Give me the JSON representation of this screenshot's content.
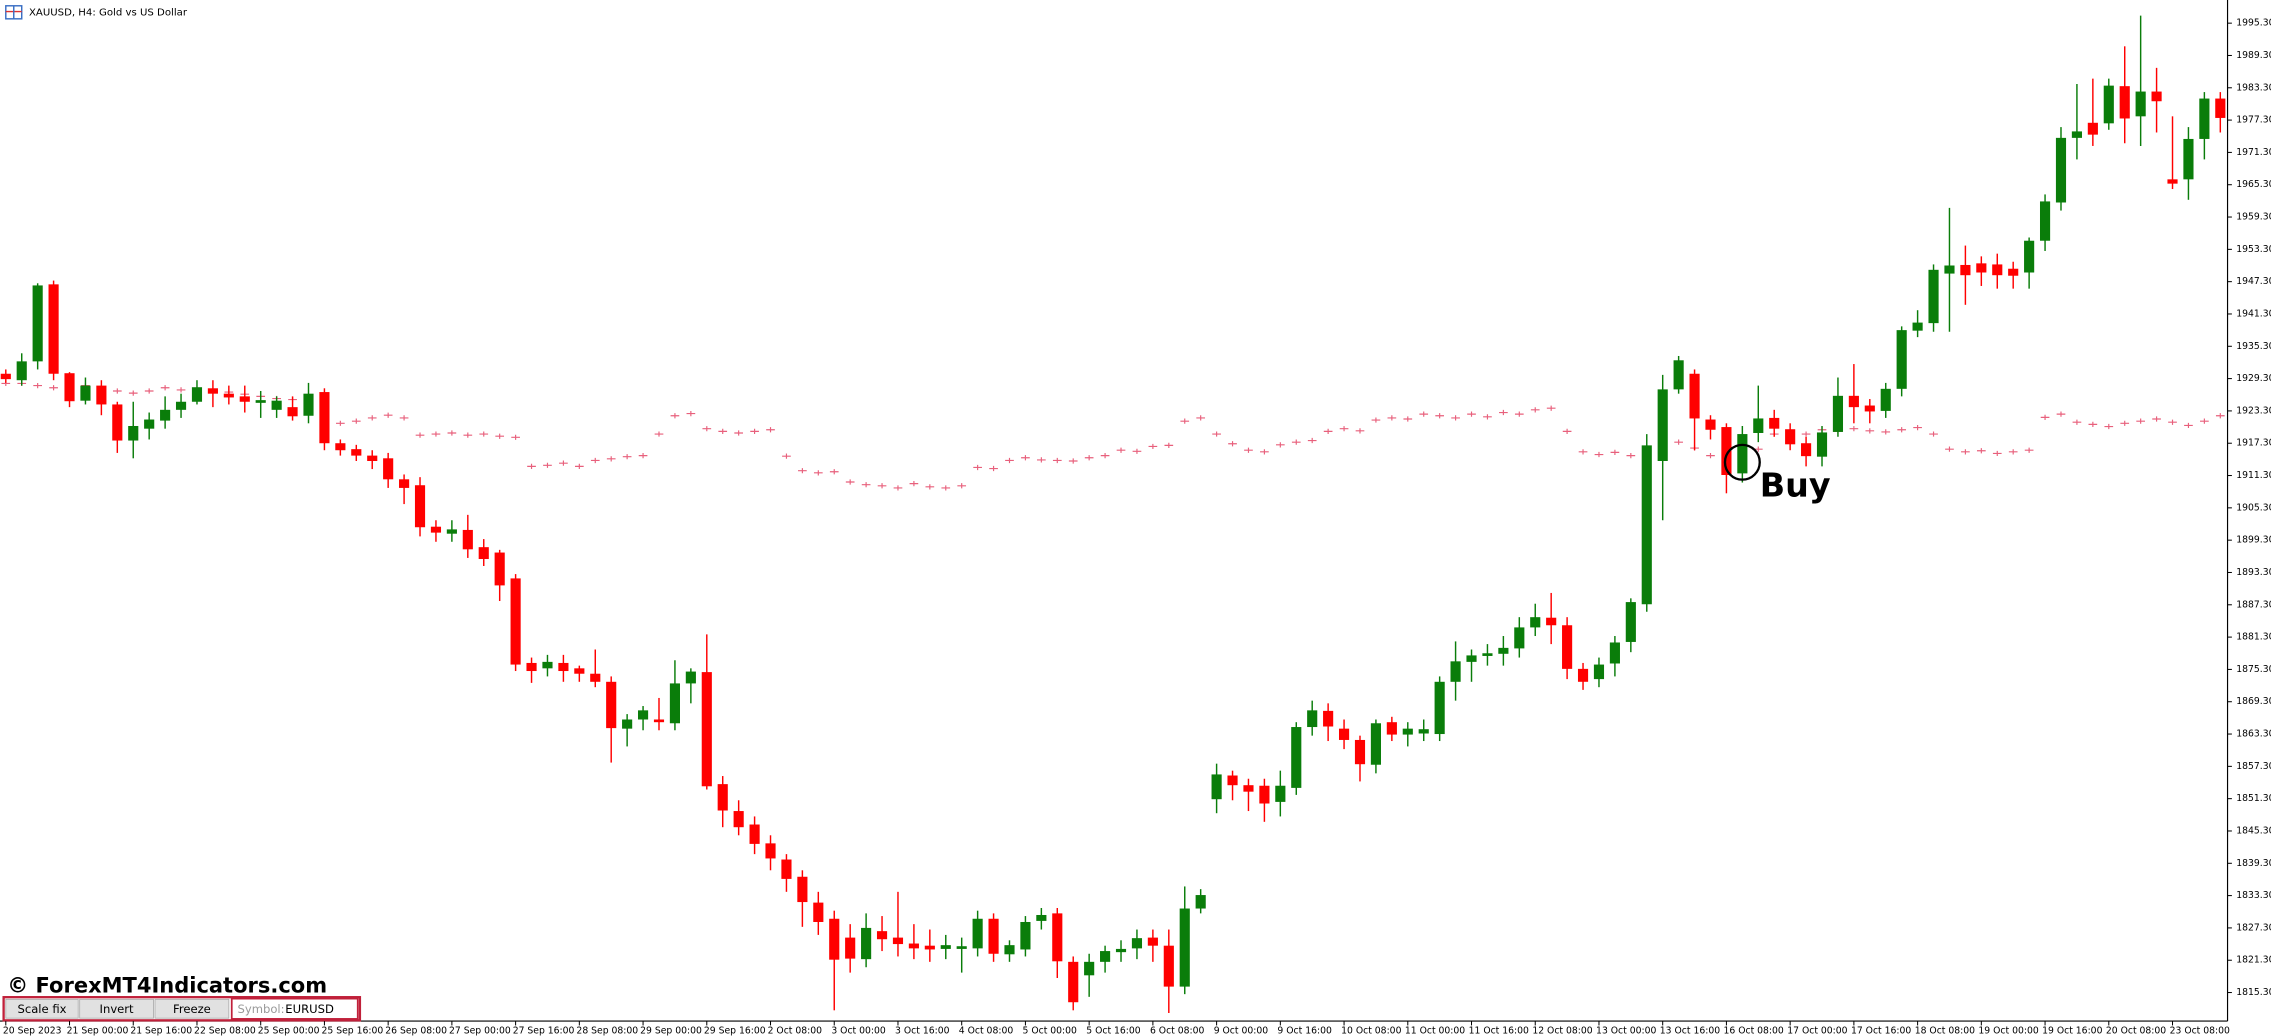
{
  "title": "XAUUSD, H4:  Gold vs US Dollar",
  "watermark": "© ForexMT4Indicators.com",
  "toolbar": {
    "buttons": [
      "Scale fix",
      "Invert",
      "Freeze"
    ],
    "symbol_label": "Symbol:",
    "symbol": "EURUSD"
  },
  "chart_data": {
    "type": "candlestick",
    "categories": [
      "20 Sep 2023",
      null,
      null,
      null,
      "21 Sep 00:00",
      null,
      null,
      null,
      "21 Sep 16:00",
      null,
      null,
      null,
      "22 Sep 08:00",
      null,
      null,
      null,
      "25 Sep 00:00",
      null,
      null,
      null,
      "25 Sep 16:00",
      null,
      null,
      null,
      "26 Sep 08:00",
      null,
      null,
      null,
      "27 Sep 00:00",
      null,
      null,
      null,
      "27 Sep 16:00",
      null,
      null,
      null,
      "28 Sep 08:00",
      null,
      null,
      null,
      "29 Sep 00:00",
      null,
      null,
      null,
      "29 Sep 16:00",
      null,
      null,
      null,
      "2 Oct 08:00",
      null,
      null,
      null,
      "3 Oct 00:00",
      null,
      null,
      null,
      "3 Oct 16:00",
      null,
      null,
      null,
      "4 Oct 08:00",
      null,
      null,
      null,
      "5 Oct 00:00",
      null,
      null,
      null,
      "5 Oct 16:00",
      null,
      null,
      null,
      "6 Oct 08:00",
      null,
      null,
      null,
      "9 Oct 00:00",
      null,
      null,
      null,
      "9 Oct 16:00",
      null,
      null,
      null,
      "10 Oct 08:00",
      null,
      null,
      null,
      "11 Oct 00:00",
      null,
      null,
      null,
      "11 Oct 16:00",
      null,
      null,
      null,
      "12 Oct 08:00",
      null,
      null,
      null,
      "13 Oct 00:00",
      null,
      null,
      null,
      "13 Oct 16:00",
      null,
      null,
      null,
      "16 Oct 08:00",
      null,
      null,
      null,
      "17 Oct 00:00",
      null,
      null,
      null,
      "17 Oct 16:00",
      null,
      null,
      null,
      "18 Oct 08:00",
      null,
      null,
      null,
      "19 Oct 00:00",
      null,
      null,
      null,
      "19 Oct 16:00",
      null,
      null,
      null,
      "20 Oct 08:00",
      null,
      null,
      null,
      "23 Oct 08:00",
      null,
      null,
      null
    ],
    "open": [
      1930.2,
      1929.0,
      1932.5,
      1946.8,
      1930.3,
      1925.2,
      1928.0,
      1924.5,
      1917.8,
      1920.0,
      1921.5,
      1923.5,
      1925.0,
      1927.5,
      1926.5,
      1926.0,
      1924.8,
      1923.5,
      1924.0,
      1922.4,
      1926.8,
      1917.3,
      1916.2,
      1915.0,
      1914.5,
      1910.6,
      1909.5,
      1901.8,
      1900.5,
      1901.2,
      1898.0,
      1897.0,
      1892.2,
      1876.5,
      1875.5,
      1876.5,
      1875.5,
      1874.5,
      1873.0,
      1864.3,
      1866.0,
      1866.0,
      1865.3,
      1872.7,
      1874.8,
      1854.0,
      1849.0,
      1846.5,
      1843.0,
      1840.0,
      1836.8,
      1832.0,
      1829.0,
      1825.5,
      1821.5,
      1826.7,
      1825.5,
      1824.4,
      1824.0,
      1823.4,
      1823.4,
      1823.5,
      1829.0,
      1822.4,
      1823.3,
      1828.6,
      1830.0,
      1821.0,
      1818.5,
      1821.0,
      1822.8,
      1823.5,
      1825.5,
      1824.0,
      1816.4,
      1830.9,
      1851.2,
      1855.6,
      1853.8,
      1853.7,
      1850.7,
      1853.3,
      1864.6,
      1867.6,
      1864.3,
      1862.2,
      1857.6,
      1865.5,
      1863.2,
      1863.4,
      1863.3,
      1873.0,
      1876.7,
      1877.8,
      1878.2,
      1879.2,
      1883.1,
      1884.9,
      1883.5,
      1875.4,
      1873.5,
      1876.4,
      1880.4,
      1887.4,
      1914.0,
      1927.3,
      1930.2,
      1921.7,
      1920.3,
      1911.7,
      1919.2,
      1922.0,
      1919.9,
      1917.3,
      1914.8,
      1919.4,
      1926.1,
      1924.3,
      1923.3,
      1927.4,
      1938.2,
      1939.6,
      1948.8,
      1950.4,
      1950.7,
      1950.5,
      1949.7,
      1949.0,
      1954.9,
      1962.0,
      1974.0,
      1976.8,
      1976.7,
      1983.6,
      1978.0,
      1982.6,
      1966.3,
      1966.3,
      1973.8,
      1981.3
    ],
    "high": [
      1931.0,
      1934.0,
      1947.0,
      1947.5,
      1930.5,
      1929.5,
      1929.0,
      1925.0,
      1925.0,
      1923.0,
      1926.0,
      1926.5,
      1929.0,
      1929.0,
      1928.0,
      1928.0,
      1927.0,
      1926.0,
      1926.0,
      1928.5,
      1927.5,
      1918.0,
      1917.0,
      1916.0,
      1915.5,
      1911.5,
      1911.0,
      1903.0,
      1903.0,
      1904.0,
      1899.5,
      1897.5,
      1893.0,
      1877.5,
      1878.0,
      1878.0,
      1876.0,
      1879.0,
      1874.0,
      1867.0,
      1868.5,
      1870.0,
      1877.0,
      1875.5,
      1881.8,
      1855.5,
      1851.0,
      1848.0,
      1844.5,
      1841.0,
      1838.0,
      1834.0,
      1830.5,
      1828.0,
      1830.0,
      1829.5,
      1834.0,
      1828.0,
      1827.0,
      1826.0,
      1825.5,
      1830.5,
      1830.0,
      1825.0,
      1829.5,
      1831.0,
      1831.0,
      1822.0,
      1822.5,
      1824.0,
      1825.0,
      1827.0,
      1827.0,
      1827.0,
      1835.0,
      1834.5,
      1857.8,
      1856.5,
      1855.0,
      1855.0,
      1856.5,
      1865.5,
      1869.5,
      1869.0,
      1866.0,
      1863.0,
      1866.0,
      1866.5,
      1865.5,
      1866.0,
      1874.0,
      1880.5,
      1879.0,
      1880.0,
      1881.5,
      1885.0,
      1887.5,
      1889.5,
      1885.0,
      1876.5,
      1877.5,
      1881.5,
      1888.5,
      1919.0,
      1930.0,
      1933.5,
      1931.0,
      1922.5,
      1921.0,
      1920.5,
      1928.0,
      1923.5,
      1921.0,
      1918.5,
      1920.5,
      1929.5,
      1932.0,
      1925.5,
      1928.5,
      1939.0,
      1942.0,
      1950.5,
      1961.0,
      1954.0,
      1952.0,
      1952.5,
      1951.0,
      1955.5,
      1963.5,
      1976.0,
      1984.0,
      1985.0,
      1985.0,
      1991.0,
      1996.7,
      1987.0,
      1978.0,
      1976.0,
      1982.5,
      1982.5
    ],
    "low": [
      1928.5,
      1928.0,
      1931.0,
      1929.0,
      1924.0,
      1924.5,
      1922.5,
      1915.5,
      1914.5,
      1918.0,
      1920.0,
      1922.0,
      1924.5,
      1924.0,
      1924.5,
      1923.0,
      1922.0,
      1922.0,
      1921.5,
      1921.0,
      1916.0,
      1915.0,
      1914.0,
      1912.5,
      1909.0,
      1906.0,
      1900.0,
      1899.0,
      1899.0,
      1896.0,
      1894.5,
      1888.0,
      1875.0,
      1872.8,
      1874.0,
      1873.0,
      1873.0,
      1872.0,
      1858.0,
      1861.0,
      1864.0,
      1864.0,
      1864.0,
      1869.0,
      1853.0,
      1846.0,
      1844.5,
      1841.0,
      1838.0,
      1834.0,
      1827.5,
      1826.0,
      1812.0,
      1819.0,
      1820.0,
      1823.0,
      1822.0,
      1821.5,
      1821.0,
      1821.5,
      1819.0,
      1822.0,
      1821.0,
      1821.0,
      1822.0,
      1827.0,
      1818.0,
      1812.0,
      1814.5,
      1819.0,
      1821.0,
      1821.5,
      1821.0,
      1811.5,
      1815.0,
      1830.0,
      1848.6,
      1851.0,
      1849.0,
      1847.0,
      1848.0,
      1852.0,
      1863.0,
      1862.0,
      1860.5,
      1854.5,
      1856.0,
      1862.0,
      1861.0,
      1862.0,
      1862.0,
      1869.5,
      1873.0,
      1876.0,
      1876.0,
      1877.5,
      1881.5,
      1880.0,
      1873.5,
      1871.5,
      1872.0,
      1874.0,
      1878.5,
      1886.0,
      1903.0,
      1926.5,
      1916.0,
      1918.0,
      1908.0,
      1910.0,
      1917.5,
      1918.5,
      1916.0,
      1913.0,
      1913.0,
      1918.5,
      1921.0,
      1921.0,
      1922.0,
      1926.0,
      1937.0,
      1938.0,
      1938.0,
      1943.0,
      1946.5,
      1946.0,
      1946.0,
      1946.0,
      1953.0,
      1960.5,
      1970.0,
      1972.5,
      1975.5,
      1973.0,
      1972.5,
      1975.0,
      1964.5,
      1962.5,
      1970.0,
      1975.0
    ],
    "close": [
      1929.2,
      1932.5,
      1946.6,
      1930.2,
      1925.1,
      1928.0,
      1924.5,
      1917.8,
      1920.5,
      1921.7,
      1923.5,
      1925.0,
      1927.7,
      1926.5,
      1925.8,
      1925.0,
      1925.3,
      1925.2,
      1922.3,
      1926.5,
      1917.3,
      1916.0,
      1915.0,
      1914.0,
      1910.6,
      1909.0,
      1901.7,
      1900.7,
      1901.3,
      1897.6,
      1895.8,
      1890.9,
      1876.2,
      1875.0,
      1876.7,
      1875.0,
      1874.5,
      1873.0,
      1864.4,
      1866.0,
      1867.7,
      1865.5,
      1872.7,
      1874.9,
      1853.6,
      1849.1,
      1846.0,
      1842.9,
      1840.2,
      1836.4,
      1832.1,
      1828.4,
      1821.4,
      1821.6,
      1827.3,
      1825.2,
      1824.3,
      1823.5,
      1823.3,
      1824.1,
      1823.9,
      1829.0,
      1822.5,
      1824.1,
      1828.4,
      1829.7,
      1821.1,
      1813.5,
      1821.0,
      1823.0,
      1823.4,
      1825.4,
      1824.0,
      1816.4,
      1830.9,
      1833.4,
      1855.8,
      1853.8,
      1852.6,
      1850.4,
      1853.7,
      1864.6,
      1867.7,
      1864.7,
      1862.2,
      1857.7,
      1865.3,
      1863.2,
      1864.3,
      1864.2,
      1873.0,
      1876.8,
      1877.9,
      1878.3,
      1879.3,
      1883.1,
      1885.0,
      1883.5,
      1875.4,
      1873.0,
      1876.2,
      1880.3,
      1887.8,
      1916.9,
      1927.3,
      1932.7,
      1921.9,
      1919.8,
      1911.4,
      1919.0,
      1921.9,
      1920.0,
      1917.1,
      1914.9,
      1919.3,
      1926.1,
      1924.0,
      1923.2,
      1927.4,
      1938.3,
      1939.7,
      1949.5,
      1950.3,
      1948.5,
      1949.0,
      1948.5,
      1948.4,
      1954.9,
      1962.2,
      1974.0,
      1975.2,
      1974.6,
      1983.7,
      1977.6,
      1982.6,
      1980.8,
      1965.5,
      1973.8,
      1981.3,
      1977.7
    ],
    "up_color": "#0a7d0a",
    "down_color": "#ff0000",
    "overlay": {
      "color": "#e8607c",
      "values": [
        1928.4,
        1928.4,
        1928.0,
        1927.6,
        1927.6,
        1928.0,
        1927.6,
        1927.0,
        1926.6,
        1927.0,
        1927.6,
        1927.2,
        1926.6,
        1927.0,
        1926.8,
        1926.4,
        1926.0,
        1925.6,
        1925.4,
        1925.0,
        1921.6,
        1921.0,
        1921.4,
        1922.0,
        1922.5,
        1922.0,
        1918.8,
        1919.0,
        1919.2,
        1918.8,
        1919.0,
        1918.6,
        1918.4,
        1913.0,
        1913.2,
        1913.6,
        1913.0,
        1914.1,
        1914.4,
        1914.8,
        1915.0,
        1919.0,
        1922.4,
        1922.8,
        1920.0,
        1919.5,
        1919.2,
        1919.5,
        1919.8,
        1914.9,
        1912.2,
        1911.8,
        1912.0,
        1910.1,
        1909.6,
        1909.4,
        1909.0,
        1909.8,
        1909.2,
        1909.0,
        1909.4,
        1912.8,
        1912.6,
        1914.1,
        1914.6,
        1914.2,
        1914.1,
        1914.0,
        1914.6,
        1915.0,
        1916.0,
        1915.8,
        1916.7,
        1916.9,
        1921.4,
        1922.0,
        1919.0,
        1917.2,
        1916.0,
        1915.7,
        1917.0,
        1917.5,
        1917.8,
        1919.5,
        1920.0,
        1919.6,
        1921.6,
        1922.0,
        1921.8,
        1922.7,
        1922.4,
        1922.0,
        1922.7,
        1922.2,
        1923.0,
        1922.7,
        1923.5,
        1923.8,
        1919.5,
        1915.7,
        1915.2,
        1915.6,
        1915.0,
        1915.6,
        1914.8,
        1917.5,
        1916.4,
        1915.0,
        1914.8,
        1915.7,
        1916.2,
        1919.0,
        1919.5,
        1919.0,
        1919.8,
        1919.5,
        1920.0,
        1919.6,
        1919.4,
        1919.8,
        1920.2,
        1919.0,
        1916.2,
        1915.7,
        1915.9,
        1915.4,
        1915.7,
        1916.0,
        1922.1,
        1922.7,
        1921.2,
        1920.8,
        1920.4,
        1921.0,
        1921.4,
        1921.8,
        1921.2,
        1920.6,
        1921.4,
        1922.4
      ]
    },
    "annotation": "Buy",
    "ylim": [
      1810,
      1999.6
    ],
    "yticks": [
      {
        "value": 1815.3,
        "label": "1815.30"
      },
      {
        "value": 1821.3,
        "label": "1821.30"
      },
      {
        "value": 1827.3,
        "label": "1827.30"
      },
      {
        "value": 1833.3,
        "label": "1833.30"
      },
      {
        "value": 1839.3,
        "label": "1839.30"
      },
      {
        "value": 1845.3,
        "label": "1845.30"
      },
      {
        "value": 1851.3,
        "label": "1851.30"
      },
      {
        "value": 1857.3,
        "label": "1857.30"
      },
      {
        "value": 1863.3,
        "label": "1863.30"
      },
      {
        "value": 1869.3,
        "label": "1869.30"
      },
      {
        "value": 1875.3,
        "label": "1875.30"
      },
      {
        "value": 1881.3,
        "label": "1881.30"
      },
      {
        "value": 1887.3,
        "label": "1887.30"
      },
      {
        "value": 1893.3,
        "label": "1893.30"
      },
      {
        "value": 1899.3,
        "label": "1899.30"
      },
      {
        "value": 1905.3,
        "label": "1905.30"
      },
      {
        "value": 1911.3,
        "label": "1911.30"
      },
      {
        "value": 1917.3,
        "label": "1917.30"
      },
      {
        "value": 1923.3,
        "label": "1923.30"
      },
      {
        "value": 1929.3,
        "label": "1929.30"
      },
      {
        "value": 1935.3,
        "label": "1935.30"
      },
      {
        "value": 1941.3,
        "label": "1941.30"
      },
      {
        "value": 1947.3,
        "label": "1947.30"
      },
      {
        "value": 1953.3,
        "label": "1953.30"
      },
      {
        "value": 1959.3,
        "label": "1959.30"
      },
      {
        "value": 1965.3,
        "label": "1965.30"
      },
      {
        "value": 1971.3,
        "label": "1971.30"
      },
      {
        "value": 1977.3,
        "label": "1977.30"
      },
      {
        "value": 1983.3,
        "label": "1983.30"
      },
      {
        "value": 1989.3,
        "label": "1989.30"
      },
      {
        "value": 1995.3,
        "label": "1995.30"
      }
    ]
  }
}
